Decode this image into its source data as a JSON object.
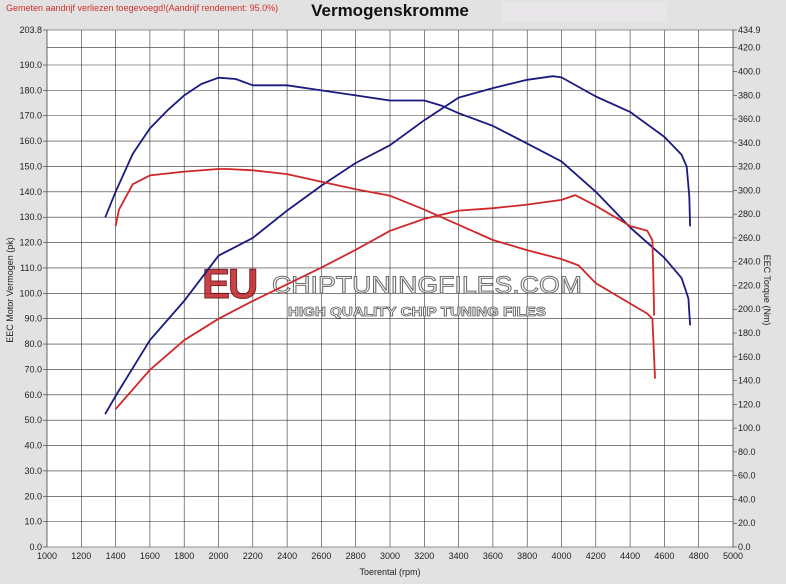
{
  "header": {
    "note": "Gemeten aandrijf verliezen toegevoegd!(Aandrijf rendement: 95.0%)",
    "title": "Vermogenskromme"
  },
  "watermark": {
    "brand": "EU",
    "site": "CHIPTUNINGFILES.COM",
    "tagline": "HIGH QUALITY CHIP TUNING FILES"
  },
  "chart_data": {
    "type": "line",
    "title": "Vermogenskromme",
    "xlabel": "Toerental (rpm)",
    "ylabel": "EEC Motor Vermogen (pk)",
    "y2label": "EEC Torque (Nm)",
    "xlim": [
      1000,
      5000
    ],
    "ylim": [
      0,
      203.8
    ],
    "y2lim": [
      0,
      434.9
    ],
    "x_ticks": [
      "1000",
      "1200",
      "1400",
      "1600",
      "1800",
      "2000",
      "2200",
      "2400",
      "2600",
      "2800",
      "3000",
      "3200",
      "3400",
      "3600",
      "3800",
      "4000",
      "4200",
      "4400",
      "4600",
      "4800",
      "5000"
    ],
    "y_ticks": [
      "0.0",
      "10.0",
      "20.0",
      "30.0",
      "40.0",
      "50.0",
      "60.0",
      "70.0",
      "80.0",
      "90.0",
      "100.0",
      "110.0",
      "120.0",
      "130.0",
      "140.0",
      "150.0",
      "160.0",
      "170.0",
      "180.0",
      "190.0",
      "203.8"
    ],
    "y2_ticks": [
      "0.0",
      "20.0",
      "40.0",
      "60.0",
      "80.0",
      "100.0",
      "120.0",
      "140.0",
      "160.0",
      "180.0",
      "200.0",
      "220.0",
      "240.0",
      "260.0",
      "280.0",
      "300.0",
      "320.0",
      "340.0",
      "360.0",
      "380.0",
      "400.0",
      "420.0",
      "434.9"
    ],
    "grid": true,
    "colors": {
      "tuned": "#1a1a80",
      "stock": "#d02828"
    },
    "series": [
      {
        "axis": "left",
        "color": "#1a1a80",
        "x": [
          1340,
          1400,
          1500,
          1600,
          1700,
          1800,
          1900,
          2000,
          2100,
          2200,
          2400,
          2600,
          2800,
          3000,
          3200,
          3300,
          3400,
          3600,
          3800,
          4000,
          4200,
          4400,
          4600,
          4700,
          4740,
          4750
        ],
        "y": [
          130,
          140,
          155,
          165,
          172,
          178,
          182.5,
          185,
          184.5,
          182,
          182,
          180,
          178,
          176,
          176,
          174,
          171,
          166,
          159,
          152,
          140,
          126,
          114,
          106,
          98,
          87.5
        ]
      },
      {
        "axis": "right",
        "color": "#1a1a80",
        "x": [
          1340,
          1400,
          1600,
          1800,
          2000,
          2200,
          2400,
          2600,
          2800,
          3000,
          3200,
          3400,
          3600,
          3800,
          3950,
          4000,
          4200,
          4400,
          4600,
          4700,
          4730,
          4745,
          4750
        ],
        "y": [
          112,
          127,
          174,
          207,
          245,
          260,
          283,
          304,
          323,
          338,
          359,
          378,
          386,
          393,
          396,
          395,
          379,
          366,
          345,
          330,
          320,
          295,
          270
        ]
      },
      {
        "axis": "left",
        "color": "#d02828",
        "x": [
          1400,
          1420,
          1500,
          1600,
          1800,
          2000,
          2050,
          2200,
          2400,
          2600,
          2800,
          3000,
          3200,
          3400,
          3600,
          3800,
          4000,
          4100,
          4200,
          4400,
          4500,
          4530,
          4540,
          4545
        ],
        "y": [
          126.5,
          133,
          143,
          146.5,
          148,
          149,
          149,
          148.5,
          147,
          144,
          141,
          138.5,
          133,
          127,
          121,
          117,
          113.5,
          111,
          104,
          96,
          92,
          90,
          75,
          66.5
        ]
      },
      {
        "axis": "right",
        "color": "#d02828",
        "x": [
          1400,
          1600,
          1800,
          2000,
          2200,
          2400,
          2600,
          2800,
          3000,
          3200,
          3400,
          3600,
          3800,
          4000,
          4080,
          4200,
          4400,
          4500,
          4530,
          4535,
          4540
        ],
        "y": [
          116,
          149,
          174,
          192,
          207,
          221,
          235,
          250,
          266,
          276,
          283,
          285,
          288,
          292,
          296,
          287,
          270,
          266,
          258,
          230,
          195
        ]
      }
    ]
  }
}
